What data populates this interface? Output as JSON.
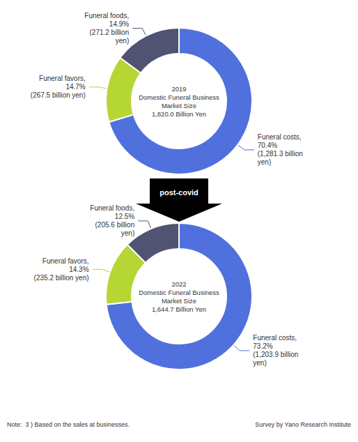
{
  "chart_data": [
    {
      "type": "pie",
      "title": "2019\nDomestic Funeral Business\nMarket Size\n1,820.0 Billion Yen",
      "categories": [
        "Funeral costs",
        "Funeral favors",
        "Funeral foods"
      ],
      "values": [
        70.4,
        14.7,
        14.9
      ],
      "value_labels": [
        "Funeral costs,\n70.4%\n(1,281.3 billion\nyen)",
        "Funeral favors,\n14.7%\n(267.5 billion yen)",
        "Funeral foods,\n14.9%\n(271.2 billion\nyen)"
      ],
      "data_labels": true
    },
    {
      "type": "pie",
      "title": "2022\nDomestic Funeral Business\nMarket Size\n1,644.7 Billion Yen",
      "categories": [
        "Funeral costs",
        "Funeral favors",
        "Funeral foods"
      ],
      "values": [
        73.2,
        14.3,
        12.5
      ],
      "value_labels": [
        "Funeral costs,\n73.2%\n(1,203.9 billion\nyen)",
        "Funeral favors,\n14.3%\n(235.2 billion yen)",
        "Funeral foods,\n12.5%\n(205.6 billion\nyen)"
      ],
      "data_labels": true
    }
  ],
  "annotations": [
    "post-covid",
    "Note:  3 ) Based on the sales at businesses.",
    "Survey by Yano Research Institute"
  ]
}
